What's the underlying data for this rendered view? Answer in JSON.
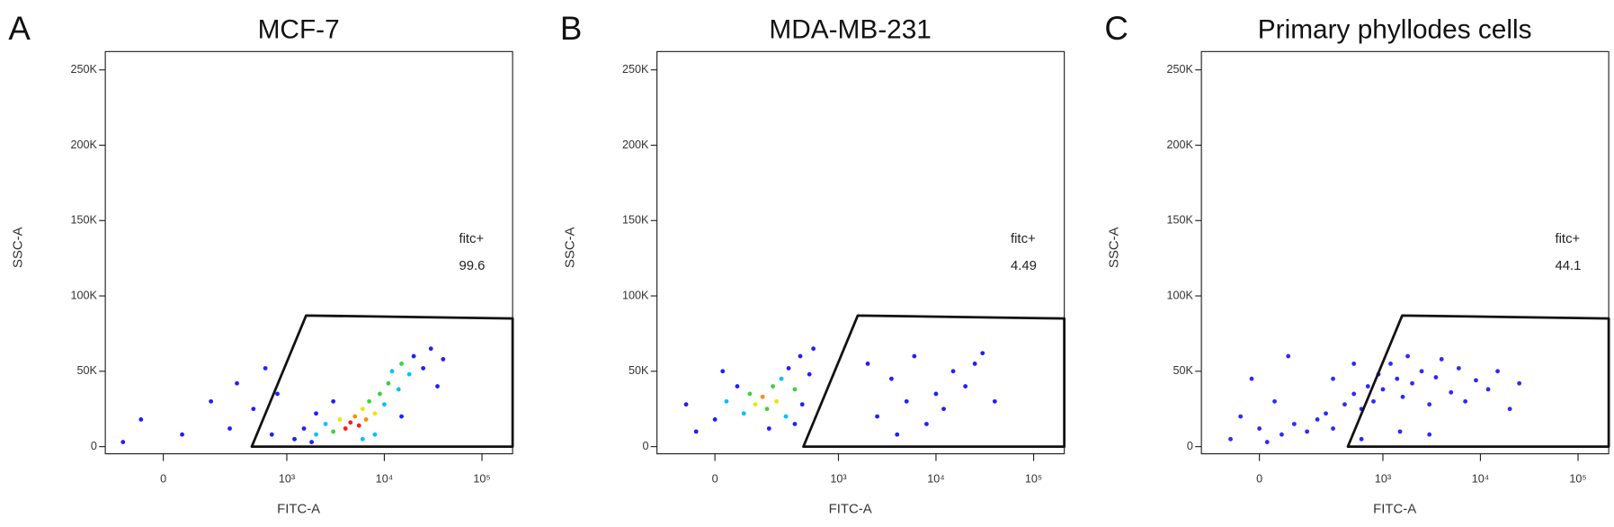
{
  "chart_data": [
    {
      "type": "scatter",
      "panel_label": "A",
      "title": "MCF-7",
      "xlabel": "FITC-A",
      "ylabel": "SSC-A",
      "x_scale": "biexponential",
      "xlim": [
        -200,
        206000
      ],
      "ylim": [
        -4750,
        262144
      ],
      "xticks": [
        0,
        {
          "value": 1000,
          "label": "10³"
        },
        {
          "value": 10000,
          "label": "10⁴"
        },
        {
          "value": 100000,
          "label": "10⁵"
        }
      ],
      "yticks": [
        0,
        {
          "value": 50000,
          "label": "50K"
        },
        {
          "value": 100000,
          "label": "100K"
        },
        {
          "value": 150000,
          "label": "150K"
        },
        {
          "value": 200000,
          "label": "200K"
        },
        {
          "value": 250000,
          "label": "250K"
        }
      ],
      "gate": {
        "x": [
          432,
          1580,
          206000,
          206000
        ],
        "y": [
          0,
          87000,
          85000,
          0
        ]
      },
      "gate_label": "fitc+",
      "gate_value": 99.6,
      "points": {
        "x": [
          -120,
          -60,
          50,
          150,
          250,
          300,
          450,
          600,
          700,
          800,
          1200,
          1500,
          2000,
          2500,
          3000,
          3500,
          4000,
          4500,
          5000,
          5500,
          6000,
          6500,
          7000,
          8000,
          9000,
          10000,
          11000,
          12000,
          14000,
          15000,
          18000,
          20000,
          25000,
          30000,
          3000,
          2000,
          8000,
          15000,
          35000,
          40000,
          1800,
          6000
        ],
        "y": [
          3000,
          18000,
          8000,
          30000,
          12000,
          42000,
          25000,
          52000,
          8000,
          35000,
          5000,
          12000,
          8000,
          15000,
          10000,
          18000,
          12000,
          16000,
          20000,
          14000,
          25000,
          18000,
          30000,
          22000,
          35000,
          28000,
          42000,
          50000,
          38000,
          55000,
          48000,
          60000,
          52000,
          65000,
          30000,
          22000,
          8000,
          20000,
          40000,
          58000,
          3000,
          5000
        ],
        "colors": [
          "#1f1fff",
          "#1f1fff",
          "#1f1fff",
          "#1f1fff",
          "#1f1fff",
          "#1f1fff",
          "#1f1fff",
          "#1f1fff",
          "#1f1fff",
          "#1f1fff",
          "#1f1fff",
          "#1f1fff",
          "#00bfff",
          "#00bfff",
          "#3fcf3f",
          "#e8e800",
          "#ff1a1a",
          "#ff1a1a",
          "#ff8c00",
          "#ff1a1a",
          "#e8e800",
          "#ff8c00",
          "#3fcf3f",
          "#e8e800",
          "#3fcf3f",
          "#00bfff",
          "#3fcf3f",
          "#00bfff",
          "#00bfff",
          "#3fcf3f",
          "#00bfff",
          "#1f1fff",
          "#1f1fff",
          "#1f1fff",
          "#1f1fff",
          "#1f1fff",
          "#00bfff",
          "#1f1fff",
          "#1f1fff",
          "#1f1fff",
          "#1f1fff",
          "#00bfff"
        ]
      }
    },
    {
      "type": "scatter",
      "panel_label": "B",
      "title": "MDA-MB-231",
      "xlabel": "FITC-A",
      "ylabel": "SSC-A",
      "x_scale": "biexponential",
      "xlim": [
        -200,
        206000
      ],
      "ylim": [
        -4750,
        262144
      ],
      "xticks": [
        0,
        {
          "value": 1000,
          "label": "10³"
        },
        {
          "value": 10000,
          "label": "10⁴"
        },
        {
          "value": 100000,
          "label": "10⁵"
        }
      ],
      "yticks": [
        0,
        {
          "value": 50000,
          "label": "50K"
        },
        {
          "value": 100000,
          "label": "100K"
        },
        {
          "value": 150000,
          "label": "150K"
        },
        {
          "value": 200000,
          "label": "200K"
        },
        {
          "value": 250000,
          "label": "250K"
        }
      ],
      "gate": {
        "x": [
          432,
          1580,
          206000,
          206000
        ],
        "y": [
          0,
          87000,
          85000,
          0
        ]
      },
      "gate_label": "fitc+",
      "gate_value": 4.49,
      "points": {
        "x": [
          -50,
          0,
          30,
          60,
          80,
          100,
          120,
          150,
          170,
          200,
          220,
          250,
          280,
          300,
          350,
          400,
          420,
          500,
          550,
          20,
          -80,
          180,
          350,
          2000,
          2500,
          3500,
          4000,
          5000,
          6000,
          8000,
          10000,
          12000,
          15000,
          20000,
          25000,
          30000,
          40000
        ],
        "y": [
          10000,
          18000,
          30000,
          40000,
          22000,
          35000,
          28000,
          33000,
          25000,
          40000,
          30000,
          45000,
          20000,
          52000,
          38000,
          60000,
          28000,
          48000,
          65000,
          50000,
          28000,
          12000,
          15000,
          55000,
          20000,
          45000,
          8000,
          30000,
          60000,
          15000,
          35000,
          25000,
          50000,
          40000,
          55000,
          62000,
          30000
        ],
        "colors": [
          "#1f1fff",
          "#1f1fff",
          "#00bfff",
          "#1f1fff",
          "#00bfff",
          "#3fcf3f",
          "#e8e800",
          "#ff8c00",
          "#3fcf3f",
          "#3fcf3f",
          "#e8e800",
          "#00bfff",
          "#00bfff",
          "#1f1fff",
          "#3fcf3f",
          "#1f1fff",
          "#1f1fff",
          "#1f1fff",
          "#1f1fff",
          "#1f1fff",
          "#1f1fff",
          "#1f1fff",
          "#1f1fff",
          "#1f1fff",
          "#1f1fff",
          "#1f1fff",
          "#1f1fff",
          "#1f1fff",
          "#1f1fff",
          "#1f1fff",
          "#1f1fff",
          "#1f1fff",
          "#1f1fff",
          "#1f1fff",
          "#1f1fff",
          "#1f1fff",
          "#1f1fff"
        ]
      }
    },
    {
      "type": "scatter",
      "panel_label": "C",
      "title": "Primary phyllodes cells",
      "xlabel": "FITC-A",
      "ylabel": "SSC-A",
      "x_scale": "biexponential",
      "xlim": [
        -200,
        206000
      ],
      "ylim": [
        -4750,
        262144
      ],
      "xticks": [
        0,
        {
          "value": 1000,
          "label": "10³"
        },
        {
          "value": 10000,
          "label": "10⁴"
        },
        {
          "value": 100000,
          "label": "10⁵"
        }
      ],
      "yticks": [
        0,
        {
          "value": 50000,
          "label": "50K"
        },
        {
          "value": 100000,
          "label": "100K"
        },
        {
          "value": 150000,
          "label": "150K"
        },
        {
          "value": 200000,
          "label": "200K"
        },
        {
          "value": 250000,
          "label": "250K"
        }
      ],
      "gate": {
        "x": [
          432,
          1580,
          206000,
          206000
        ],
        "y": [
          0,
          87000,
          85000,
          0
        ]
      },
      "gate_label": "fitc+",
      "gate_value": 44.1,
      "points": {
        "x": [
          -80,
          -50,
          -20,
          0,
          20,
          40,
          60,
          80,
          100,
          150,
          200,
          250,
          300,
          400,
          500,
          600,
          700,
          800,
          900,
          1000,
          1200,
          1400,
          1600,
          1800,
          2000,
          2500,
          3000,
          3500,
          4000,
          5000,
          6000,
          7000,
          9000,
          12000,
          15000,
          20000,
          25000,
          500,
          300,
          1500,
          3000,
          600
        ],
        "y": [
          5000,
          20000,
          45000,
          12000,
          3000,
          30000,
          8000,
          60000,
          15000,
          10000,
          18000,
          22000,
          12000,
          28000,
          35000,
          25000,
          40000,
          30000,
          48000,
          38000,
          55000,
          45000,
          33000,
          60000,
          42000,
          50000,
          28000,
          46000,
          58000,
          36000,
          52000,
          30000,
          44000,
          38000,
          50000,
          25000,
          42000,
          55000,
          45000,
          10000,
          8000,
          5000
        ],
        "color": "#2a2aff"
      }
    }
  ]
}
